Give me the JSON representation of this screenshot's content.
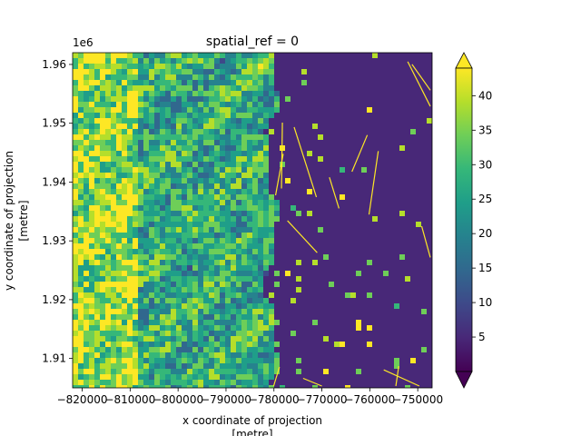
{
  "chart_data": {
    "type": "heatmap",
    "title": "spatial_ref = 0",
    "xlabel_line1": "x coordinate of projection",
    "xlabel_line2": "[metre]",
    "ylabel_line1": "y coordinate of projection",
    "ylabel_line2": "[metre]",
    "y_offset_label": "1e6",
    "xlim": [
      -822000,
      -747000
    ],
    "ylim": [
      1.905,
      1.962
    ],
    "x_ticks": [
      -820000,
      -810000,
      -800000,
      -790000,
      -780000,
      -770000,
      -760000,
      -750000
    ],
    "x_tick_labels": [
      "−820000",
      "−810000",
      "−800000",
      "−790000",
      "−780000",
      "−770000",
      "−760000",
      "−750000"
    ],
    "y_ticks": [
      1.91,
      1.92,
      1.93,
      1.94,
      1.95,
      1.96
    ],
    "y_tick_labels": [
      "1.91",
      "1.92",
      "1.93",
      "1.94",
      "1.95",
      "1.96"
    ],
    "colorbar": {
      "colormap": "viridis",
      "vmin": 0,
      "vmax": 44,
      "extend": "both",
      "ticks": [
        5,
        10,
        15,
        20,
        25,
        30,
        35,
        40
      ],
      "tick_labels": [
        "5",
        "10",
        "15",
        "20",
        "25",
        "30",
        "35",
        "40"
      ]
    },
    "field": {
      "description_visible": "raster: high values west of x≈−780000, low values east with scattered bright stream lines",
      "boundary_x": -781000,
      "west_mean": 22,
      "east_mean": 3
    }
  },
  "colors": {
    "viridis": [
      "#440154",
      "#482878",
      "#3e4989",
      "#31688e",
      "#26828e",
      "#1f9e89",
      "#35b779",
      "#6ece58",
      "#b5de2b",
      "#fde725"
    ]
  }
}
